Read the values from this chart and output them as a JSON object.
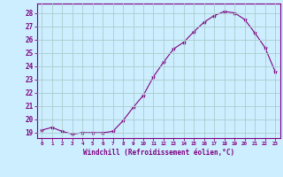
{
  "x": [
    0,
    1,
    2,
    3,
    4,
    5,
    6,
    7,
    8,
    9,
    10,
    11,
    12,
    13,
    14,
    15,
    16,
    17,
    18,
    19,
    20,
    21,
    22,
    23
  ],
  "y": [
    19.2,
    19.4,
    19.1,
    18.9,
    19.0,
    19.0,
    19.0,
    19.1,
    19.9,
    20.9,
    21.8,
    23.2,
    24.3,
    25.3,
    25.8,
    26.6,
    27.3,
    27.8,
    28.1,
    28.0,
    27.5,
    26.5,
    25.4,
    23.6
  ],
  "line_color": "#800080",
  "marker": "*",
  "marker_size": 3,
  "bg_color": "#cceeff",
  "grid_color": "#aacccc",
  "xlabel": "Windchill (Refroidissement éolien,°C)",
  "xlabel_color": "#800080",
  "ylabel_ticks": [
    19,
    20,
    21,
    22,
    23,
    24,
    25,
    26,
    27,
    28
  ],
  "ylim": [
    18.6,
    28.7
  ],
  "xlim": [
    -0.5,
    23.5
  ],
  "tick_color": "#800080",
  "tick_label_color": "#800080",
  "spine_color": "#800080"
}
